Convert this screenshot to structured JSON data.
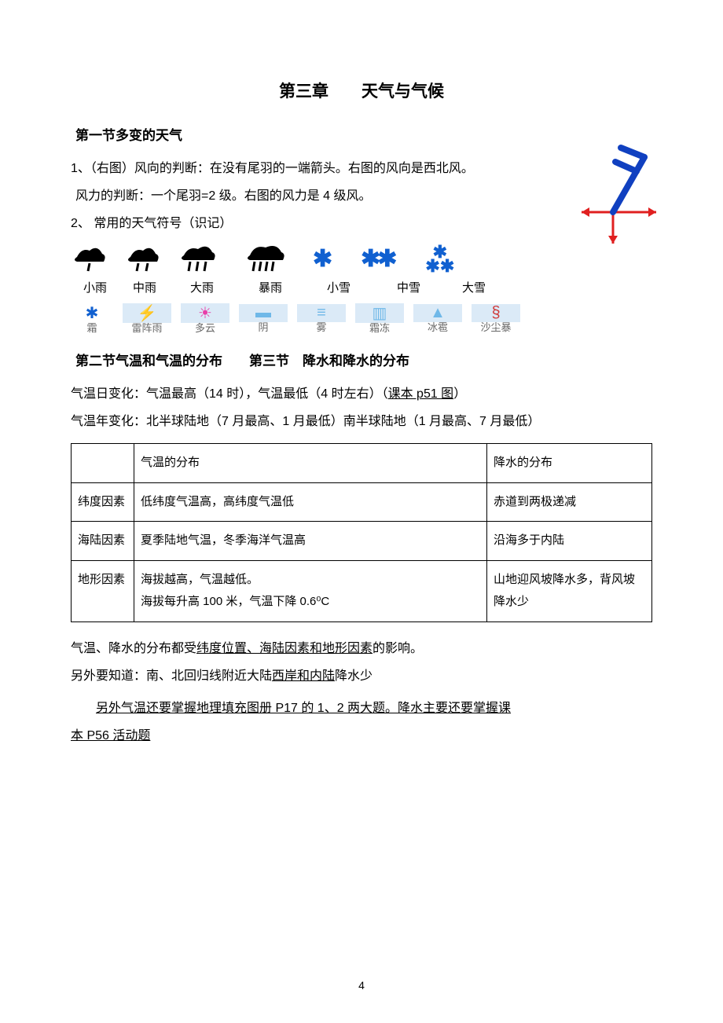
{
  "chapter_title": "第三章　　天气与气候",
  "section1_title": "第一节多变的天气",
  "wind": {
    "line1": "1、（右图）风向的判断：在没有尾羽的一端箭头。右图的风向是西北风。",
    "line2": "风力的判断：一个尾羽=2 级。右图的风力是 4 级风。"
  },
  "item2_label": "2、 常用的天气符号（识记）",
  "rain_labels": [
    "小雨",
    "中雨",
    "大雨",
    "暴雨",
    "小雪",
    "中雪",
    "大雪"
  ],
  "rain_label_widths": [
    62,
    64,
    82,
    92,
    82,
    96,
    70
  ],
  "second_row": [
    {
      "icon": "✱",
      "icon_color": "#1060d0",
      "below": "霜",
      "bg": false
    },
    {
      "icon": "⚡",
      "icon_color": "#e83ea8",
      "below": "雷阵雨",
      "bg": true
    },
    {
      "icon": "☀︎",
      "icon_color": "#e83ea8",
      "below": "多云",
      "bg": true
    },
    {
      "icon": "▬",
      "icon_color": "#6fb8e8",
      "below": "阴",
      "bg": true
    },
    {
      "icon": "≡",
      "icon_color": "#6fb8e8",
      "below": "雾",
      "bg": true
    },
    {
      "icon": "▥",
      "icon_color": "#6fb8e8",
      "below": "霜冻",
      "bg": true
    },
    {
      "icon": "▲",
      "icon_color": "#6fb8e8",
      "below": "冰雹",
      "bg": true
    },
    {
      "icon": "§",
      "icon_color": "#d03a3a",
      "below": "沙尘暴",
      "bg": true
    }
  ],
  "section2_title": "第二节气温和气温的分布",
  "section3_title": "第三节　降水和降水的分布",
  "daily_change": "气温日变化：气温最高（14 时），气温最低（4 时左右）（",
  "daily_change_link": "课本 p51 图",
  "daily_change_end": "）",
  "annual_change": "气温年变化：北半球陆地（7 月最高、1 月最低）南半球陆地（1 月最高、7 月最低）",
  "table": {
    "header": [
      "",
      "气温的分布",
      "降水的分布"
    ],
    "rows": [
      [
        "纬度因素",
        "低纬度气温高，高纬度气温低",
        "赤道到两极递减"
      ],
      [
        "海陆因素",
        "夏季陆地气温，冬季海洋气温高",
        "沿海多于内陆"
      ],
      [
        "地形因素",
        "海拔越高，气温越低。\n海拔每升高 100 米，气温下降 0.6⁰C",
        "山地迎风坡降水多，背风坡降水少"
      ]
    ],
    "col_widths": [
      "80px",
      "auto",
      "210px"
    ]
  },
  "after_table_1a": "气温、降水的分布都受",
  "after_table_1b": "纬度位置、海陆因素和地形因素",
  "after_table_1c": "的影响。",
  "after_table_2a": "另外要知道：南、北回归线附近大陆",
  "after_table_2b": "西岸和内陆",
  "after_table_2c": "降水少",
  "after_table_3a": "另外气温还要掌握地理填充图册 P17 的 1、2 两大题。降水主要还要掌握课",
  "after_table_3b": "本 P56 活动题",
  "page_number": "4",
  "colors": {
    "snow_blue": "#1060d0",
    "arrow_red": "#e02020",
    "black": "#000000"
  }
}
